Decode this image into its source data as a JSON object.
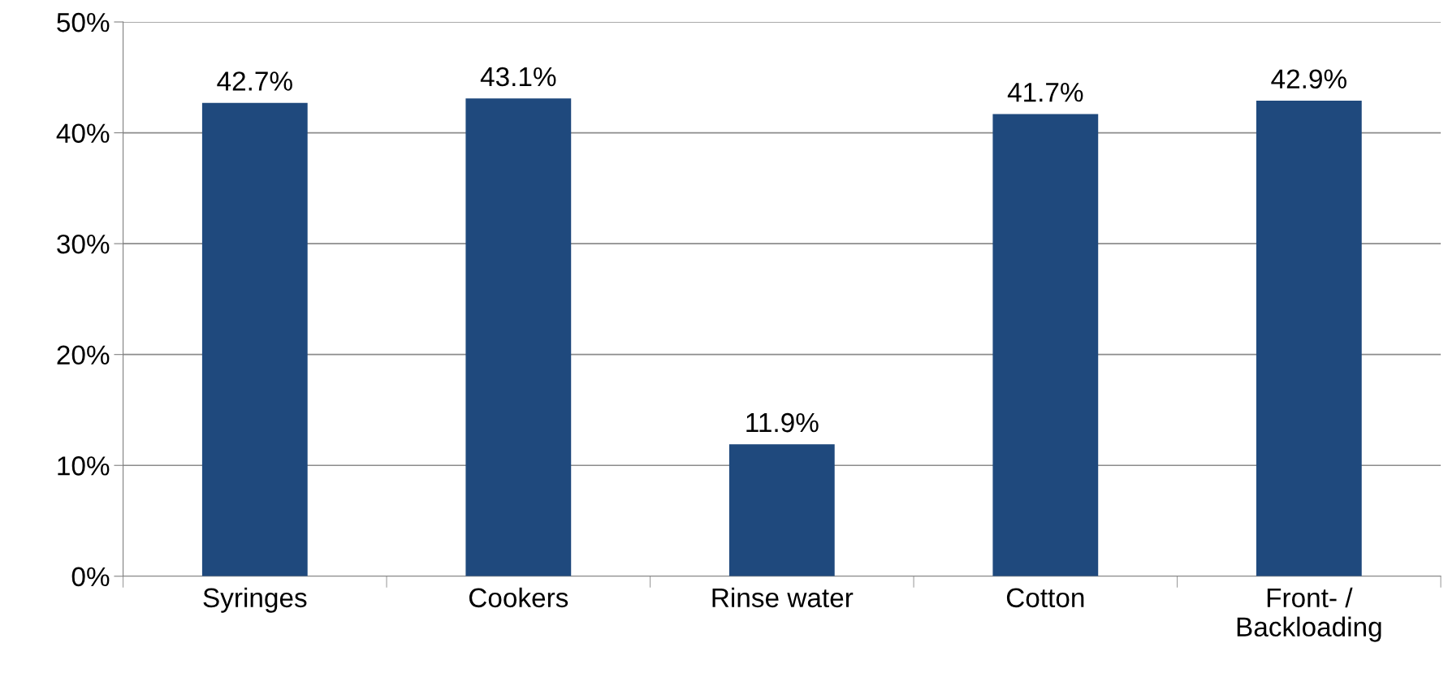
{
  "chart_data": {
    "type": "bar",
    "categories": [
      "Syringes",
      "Cookers",
      "Rinse water",
      "Cotton",
      "Front- /\nBackloading"
    ],
    "values": [
      42.7,
      43.1,
      11.9,
      41.7,
      42.9
    ],
    "value_labels": [
      "42.7%",
      "43.1%",
      "11.9%",
      "41.7%",
      "42.9%"
    ],
    "color": "#1f497d",
    "ylim": [
      0,
      50
    ],
    "yticks": [
      {
        "value": 0,
        "label": "0%"
      },
      {
        "value": 10,
        "label": "10%"
      },
      {
        "value": 20,
        "label": "20%"
      },
      {
        "value": 30,
        "label": "30%"
      },
      {
        "value": 40,
        "label": "40%"
      },
      {
        "value": 50,
        "label": "50%"
      }
    ],
    "grid": "y",
    "legend": false
  }
}
